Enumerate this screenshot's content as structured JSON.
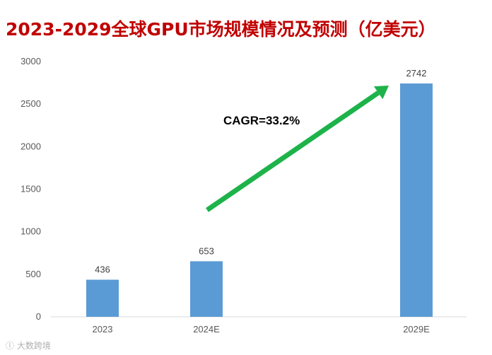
{
  "chart_data": {
    "type": "bar",
    "title": "2023-2029全球GPU市场规模情况及预测（亿美元）",
    "categories": [
      "2023",
      "2024E",
      "2029E"
    ],
    "values": [
      436,
      653,
      2742
    ],
    "ylim": [
      0,
      3000
    ],
    "yticks": [
      0,
      500,
      1000,
      1500,
      2000,
      2500,
      3000
    ],
    "grid": false,
    "annotation": "CAGR=33.2%",
    "bar_color": "#5b9bd5",
    "arrow_color": "#1db34a",
    "title_color": "#c00000"
  },
  "watermark": "大数跨境"
}
